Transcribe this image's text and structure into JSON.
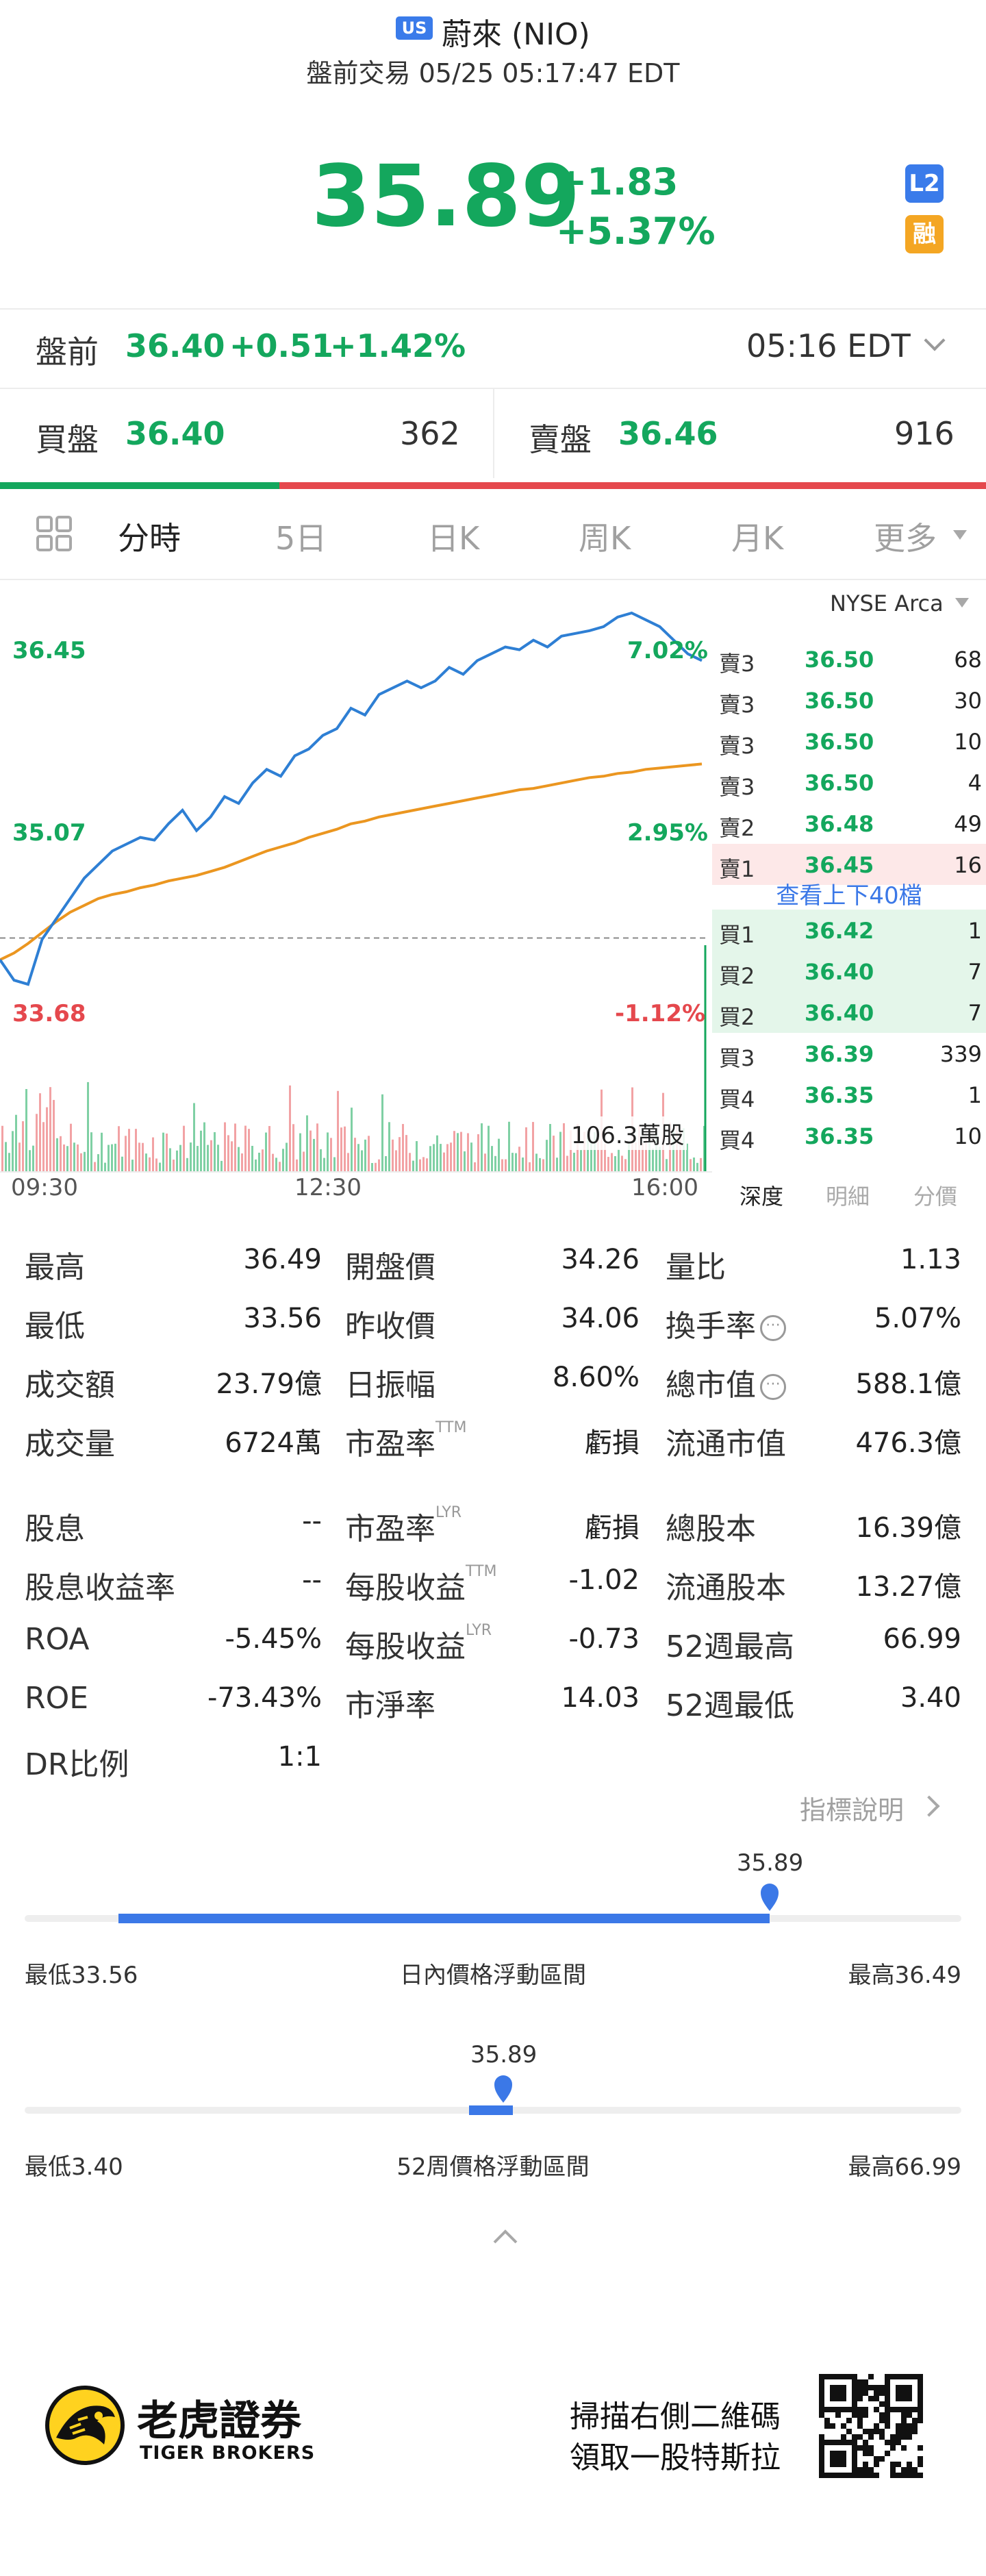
{
  "header": {
    "market_badge": "US",
    "title": "蔚來 (NIO)",
    "subtitle": "盤前交易 05/25 05:17:47 EDT",
    "price": "35.89",
    "change": "+1.83",
    "change_pct": "+5.37%",
    "badge_l2": "L2",
    "badge_margin": "融"
  },
  "premarket": {
    "label": "盤前",
    "price": "36.40",
    "change": "+0.51",
    "change_pct": "+1.42%",
    "time": "05:16 EDT"
  },
  "bid_ask": {
    "bid_label": "買盤",
    "bid_price": "36.40",
    "bid_size": "362",
    "ask_label": "賣盤",
    "ask_price": "36.46",
    "ask_size": "916",
    "bid_ratio": 0.283
  },
  "tabs": [
    {
      "label": "分時",
      "active": true
    },
    {
      "label": "5日"
    },
    {
      "label": "日K"
    },
    {
      "label": "周K"
    },
    {
      "label": "月K"
    },
    {
      "label": "更多"
    }
  ],
  "chart_data": {
    "type": "line",
    "y_labels": {
      "top": "36.45",
      "mid": "35.07",
      "bottom": "33.68"
    },
    "pct_labels": {
      "top": "7.02%",
      "mid": "2.95%",
      "bottom": "-1.12%"
    },
    "x_labels": [
      "09:30",
      "12:30",
      "16:00"
    ],
    "ylim": [
      33.68,
      36.45
    ],
    "prev_close": 34.06,
    "volume_label": "106.3萬股",
    "series": [
      {
        "values": [
          33.9,
          33.75,
          33.72,
          34.05,
          34.2,
          34.35,
          34.5,
          34.6,
          34.7,
          34.75,
          34.8,
          34.78,
          34.9,
          35.0,
          34.85,
          34.95,
          35.1,
          35.05,
          35.2,
          35.3,
          35.25,
          35.4,
          35.45,
          35.55,
          35.6,
          35.75,
          35.7,
          35.85,
          35.9,
          35.95,
          35.9,
          35.95,
          36.05,
          36.0,
          36.1,
          36.15,
          36.2,
          36.18,
          36.25,
          36.2,
          36.28,
          36.3,
          36.32,
          36.35,
          36.42,
          36.45,
          36.4,
          36.35,
          36.25,
          36.15,
          36.1
        ]
      },
      {
        "values": [
          33.9,
          33.95,
          34.02,
          34.1,
          34.18,
          34.25,
          34.3,
          34.35,
          34.38,
          34.4,
          34.43,
          34.45,
          34.48,
          34.5,
          34.52,
          34.55,
          34.58,
          34.62,
          34.66,
          34.7,
          34.73,
          34.76,
          34.8,
          34.83,
          34.86,
          34.9,
          34.92,
          34.95,
          34.97,
          34.99,
          35.01,
          35.03,
          35.05,
          35.07,
          35.09,
          35.11,
          35.13,
          35.15,
          35.16,
          35.18,
          35.2,
          35.22,
          35.24,
          35.25,
          35.27,
          35.28,
          35.3,
          35.31,
          35.32,
          35.33,
          35.34
        ]
      }
    ]
  },
  "order_book": {
    "exchange": "NYSE Arca",
    "asks": [
      {
        "side": "賣3",
        "price": "36.50",
        "size": "68"
      },
      {
        "side": "賣3",
        "price": "36.50",
        "size": "30"
      },
      {
        "side": "賣3",
        "price": "36.50",
        "size": "10"
      },
      {
        "side": "賣3",
        "price": "36.50",
        "size": "4"
      },
      {
        "side": "賣2",
        "price": "36.48",
        "size": "49"
      },
      {
        "side": "賣1",
        "price": "36.45",
        "size": "16"
      }
    ],
    "view_more": "查看上下40檔",
    "bids": [
      {
        "side": "買1",
        "price": "36.42",
        "size": "1"
      },
      {
        "side": "買2",
        "price": "36.40",
        "size": "7"
      },
      {
        "side": "買2",
        "price": "36.40",
        "size": "7"
      },
      {
        "side": "買3",
        "price": "36.39",
        "size": "339"
      },
      {
        "side": "買4",
        "price": "36.35",
        "size": "1"
      },
      {
        "side": "買4",
        "price": "36.35",
        "size": "10"
      }
    ],
    "tabs": [
      "深度",
      "明細",
      "分價"
    ]
  },
  "stats": {
    "rows": [
      [
        {
          "l": "最高",
          "v": "36.49"
        },
        {
          "l": "開盤價",
          "v": "34.26"
        },
        {
          "l": "量比",
          "v": "1.13"
        }
      ],
      [
        {
          "l": "最低",
          "v": "33.56"
        },
        {
          "l": "昨收價",
          "v": "34.06"
        },
        {
          "l": "換手率",
          "v": "5.07%",
          "info": true
        }
      ],
      [
        {
          "l": "成交額",
          "v": "23.79億"
        },
        {
          "l": "日振幅",
          "v": "8.60%"
        },
        {
          "l": "總市值",
          "v": "588.1億",
          "info": true
        }
      ],
      [
        {
          "l": "成交量",
          "v": "6724萬"
        },
        {
          "l": "市盈率",
          "sup": "TTM",
          "v": "虧損"
        },
        {
          "l": "流通市值",
          "v": "476.3億"
        }
      ],
      [
        {
          "l": "股息",
          "v": "--"
        },
        {
          "l": "市盈率",
          "sup": "LYR",
          "v": "虧損"
        },
        {
          "l": "總股本",
          "v": "16.39億"
        }
      ],
      [
        {
          "l": "股息收益率",
          "v": "--"
        },
        {
          "l": "每股收益",
          "sup": "TTM",
          "v": "-1.02"
        },
        {
          "l": "流通股本",
          "v": "13.27億"
        }
      ],
      [
        {
          "l": "ROA",
          "v": "-5.45%"
        },
        {
          "l": "每股收益",
          "sup": "LYR",
          "v": "-0.73"
        },
        {
          "l": "52週最高",
          "v": "66.99"
        }
      ],
      [
        {
          "l": "ROE",
          "v": "-73.43%"
        },
        {
          "l": "市淨率",
          "v": "14.03"
        },
        {
          "l": "52週最低",
          "v": "3.40"
        }
      ],
      [
        {
          "l": "DR比例",
          "v": "1:1"
        }
      ]
    ],
    "explain_link": "指標說明"
  },
  "day_range": {
    "low_label": "最低33.56",
    "title": "日內價格浮動區間",
    "high_label": "最高36.49",
    "current": "35.89",
    "low": 33.56,
    "high": 36.49,
    "value": 35.89
  },
  "week52_range": {
    "low_label": "最低3.40",
    "title": "52周價格浮動區間",
    "high_label": "最高66.99",
    "current": "35.89",
    "low": 3.4,
    "high": 66.99,
    "value": 35.89
  },
  "footer": {
    "brand_cn": "老虎證券",
    "brand_en": "TIGER BROKERS",
    "promo_line1": "掃描右側二維碼",
    "promo_line2": "領取一股特斯拉"
  }
}
